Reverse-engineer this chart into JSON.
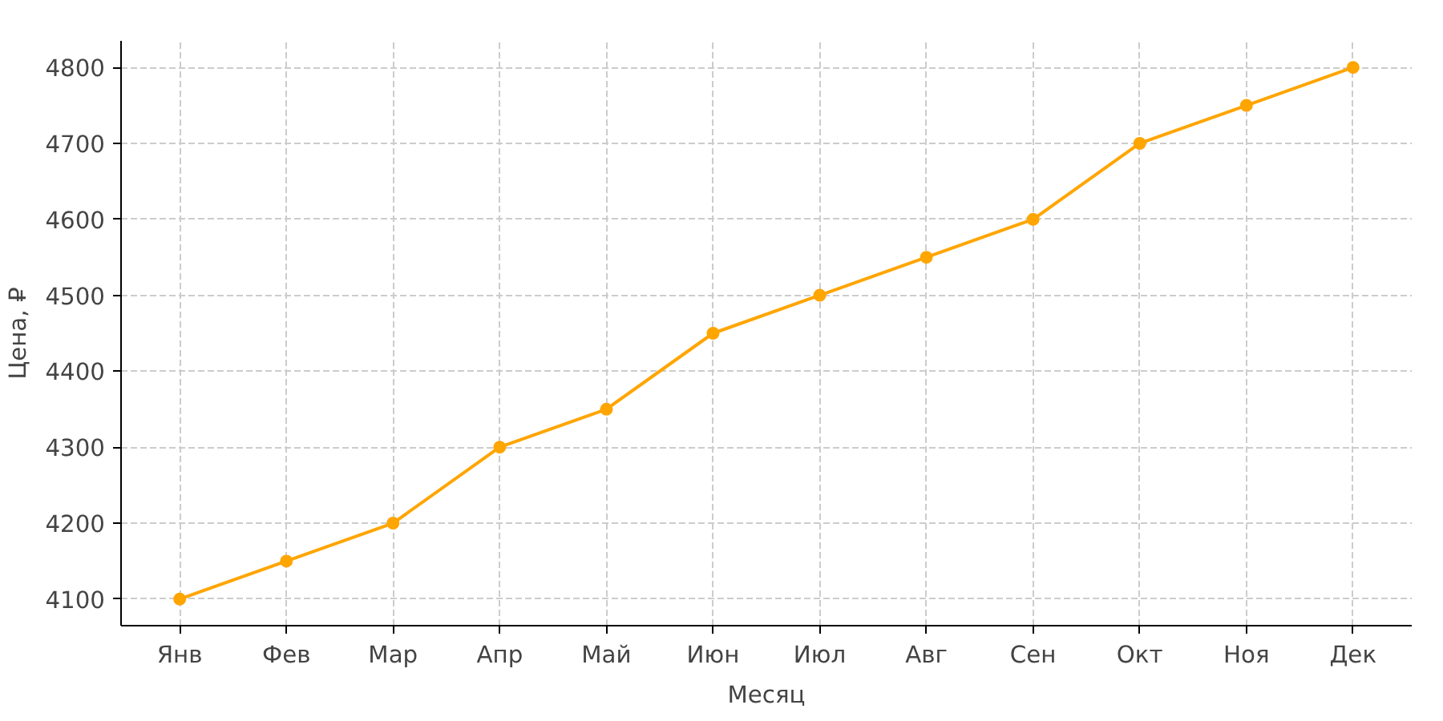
{
  "chart_data": {
    "type": "line",
    "xlabel": "Месяц",
    "ylabel": "Цена, ₽",
    "categories": [
      "Янв",
      "Фев",
      "Мар",
      "Апр",
      "Май",
      "Июн",
      "Июл",
      "Авг",
      "Сен",
      "Окт",
      "Ноя",
      "Дек"
    ],
    "series": [
      {
        "color": "#ffa500",
        "values": [
          4100,
          4150,
          4200,
          4300,
          4350,
          4450,
          4500,
          4550,
          4600,
          4700,
          4750,
          4800
        ]
      }
    ],
    "ylim": [
      4065,
      4835
    ],
    "yticks": [
      4100,
      4200,
      4300,
      4400,
      4500,
      4600,
      4700,
      4800
    ],
    "grid": true,
    "marker": "circle",
    "line_style": "solid"
  }
}
